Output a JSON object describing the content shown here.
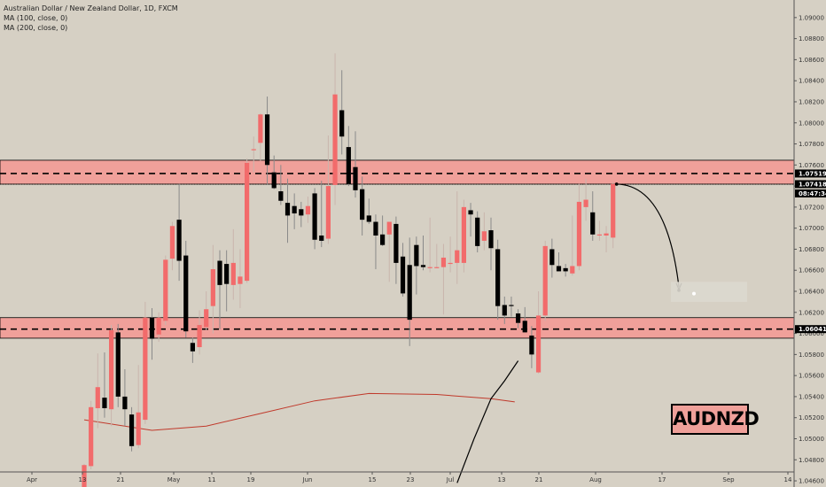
{
  "legend": {
    "title": "Australian Dollar / New Zealand Dollar, 1D, FXCM",
    "ma100": "MA (100, close, 0)",
    "ma200": "MA (200, close, 0)"
  },
  "symbol_label": "AUDNZD",
  "price_labels": {
    "upper_level": "1.07519",
    "last_price": "1.07418",
    "countdown": "08:47:34",
    "lower_level": "1.06041"
  },
  "colors": {
    "background": "#d6d0c4",
    "up": "#f26b6b",
    "down": "#000000",
    "zone_fill": "#f0a09a",
    "ma100": "#000000",
    "ma200": "#c0392b"
  },
  "chart_data": {
    "type": "candlestick",
    "y_axis_ticks": [
      "1.09000",
      "1.08800",
      "1.08600",
      "1.08400",
      "1.08200",
      "1.08000",
      "1.07800",
      "1.07600",
      "1.07400",
      "1.07200",
      "1.07000",
      "1.06800",
      "1.06600",
      "1.06400",
      "1.06200",
      "1.06000",
      "1.05800",
      "1.05600",
      "1.05400",
      "1.05200",
      "1.05000",
      "1.04800",
      "1.04600"
    ],
    "x_axis_ticks": [
      "Apr",
      "13",
      "21",
      "May",
      "11",
      "19",
      "Jun",
      "15",
      "23",
      "Jul",
      "13",
      "21",
      "Aug",
      "17",
      "Sep",
      "14"
    ],
    "ylim": [
      1.0455,
      1.0915
    ],
    "resistance_zone": [
      1.07418,
      1.07645
    ],
    "resistance_line": 1.07519,
    "support_zone": [
      1.05955,
      1.0615
    ],
    "support_line": 1.06041,
    "last_price": 1.07418,
    "projection": {
      "from": 1.07418,
      "to": 1.0641,
      "target_box": [
        1.063,
        1.0649
      ]
    },
    "candles": [
      {
        "o": 1.044,
        "h": 1.0476,
        "l": 1.044,
        "c": 1.0475
      },
      {
        "o": 1.0474,
        "h": 1.0536,
        "l": 1.0471,
        "c": 1.053
      },
      {
        "o": 1.0529,
        "h": 1.0581,
        "l": 1.051,
        "c": 1.0549
      },
      {
        "o": 1.0539,
        "h": 1.0582,
        "l": 1.052,
        "c": 1.0529
      },
      {
        "o": 1.0528,
        "h": 1.0608,
        "l": 1.0512,
        "c": 1.0603
      },
      {
        "o": 1.0601,
        "h": 1.0609,
        "l": 1.053,
        "c": 1.054
      },
      {
        "o": 1.054,
        "h": 1.0566,
        "l": 1.0512,
        "c": 1.0528
      },
      {
        "o": 1.0523,
        "h": 1.053,
        "l": 1.0488,
        "c": 1.0493
      },
      {
        "o": 1.0494,
        "h": 1.057,
        "l": 1.0491,
        "c": 1.0525
      },
      {
        "o": 1.0518,
        "h": 1.063,
        "l": 1.0514,
        "c": 1.0615
      },
      {
        "o": 1.0615,
        "h": 1.0624,
        "l": 1.0575,
        "c": 1.0595
      },
      {
        "o": 1.0599,
        "h": 1.062,
        "l": 1.0592,
        "c": 1.0615
      },
      {
        "o": 1.0612,
        "h": 1.0674,
        "l": 1.0608,
        "c": 1.067
      },
      {
        "o": 1.0671,
        "h": 1.0706,
        "l": 1.066,
        "c": 1.0702
      },
      {
        "o": 1.0708,
        "h": 1.0742,
        "l": 1.065,
        "c": 1.0669
      },
      {
        "o": 1.0674,
        "h": 1.0688,
        "l": 1.0596,
        "c": 1.0602
      },
      {
        "o": 1.0591,
        "h": 1.0596,
        "l": 1.0572,
        "c": 1.0583
      },
      {
        "o": 1.0587,
        "h": 1.0622,
        "l": 1.058,
        "c": 1.0608
      },
      {
        "o": 1.0606,
        "h": 1.064,
        "l": 1.0603,
        "c": 1.0623
      },
      {
        "o": 1.0626,
        "h": 1.0684,
        "l": 1.06,
        "c": 1.0661
      },
      {
        "o": 1.0669,
        "h": 1.0679,
        "l": 1.0604,
        "c": 1.0646
      },
      {
        "o": 1.0666,
        "h": 1.0679,
        "l": 1.0621,
        "c": 1.0647
      },
      {
        "o": 1.0646,
        "h": 1.0699,
        "l": 1.0632,
        "c": 1.0667
      },
      {
        "o": 1.0647,
        "h": 1.068,
        "l": 1.0624,
        "c": 1.0654
      },
      {
        "o": 1.065,
        "h": 1.0766,
        "l": 1.0648,
        "c": 1.0762
      },
      {
        "o": 1.0774,
        "h": 1.0787,
        "l": 1.0753,
        "c": 1.0775
      },
      {
        "o": 1.0781,
        "h": 1.0809,
        "l": 1.0764,
        "c": 1.0808
      },
      {
        "o": 1.0808,
        "h": 1.0825,
        "l": 1.0741,
        "c": 1.076
      },
      {
        "o": 1.0753,
        "h": 1.0769,
        "l": 1.0737,
        "c": 1.0738
      },
      {
        "o": 1.0735,
        "h": 1.076,
        "l": 1.0722,
        "c": 1.0726
      },
      {
        "o": 1.0724,
        "h": 1.0747,
        "l": 1.0686,
        "c": 1.0712
      },
      {
        "o": 1.0721,
        "h": 1.0733,
        "l": 1.0699,
        "c": 1.0714
      },
      {
        "o": 1.0718,
        "h": 1.0725,
        "l": 1.0701,
        "c": 1.0712
      },
      {
        "o": 1.0713,
        "h": 1.073,
        "l": 1.0705,
        "c": 1.0721
      },
      {
        "o": 1.0733,
        "h": 1.0738,
        "l": 1.068,
        "c": 1.0689
      },
      {
        "o": 1.0693,
        "h": 1.0745,
        "l": 1.0682,
        "c": 1.0688
      },
      {
        "o": 1.069,
        "h": 1.0788,
        "l": 1.0685,
        "c": 1.074
      },
      {
        "o": 1.0741,
        "h": 1.0866,
        "l": 1.0722,
        "c": 1.0827
      },
      {
        "o": 1.0812,
        "h": 1.085,
        "l": 1.077,
        "c": 1.0787
      },
      {
        "o": 1.0777,
        "h": 1.0797,
        "l": 1.074,
        "c": 1.0742
      },
      {
        "o": 1.0758,
        "h": 1.0792,
        "l": 1.0729,
        "c": 1.0736
      },
      {
        "o": 1.0737,
        "h": 1.0749,
        "l": 1.0693,
        "c": 1.0708
      },
      {
        "o": 1.0712,
        "h": 1.0728,
        "l": 1.0704,
        "c": 1.0706
      },
      {
        "o": 1.0706,
        "h": 1.0713,
        "l": 1.0661,
        "c": 1.0693
      },
      {
        "o": 1.0694,
        "h": 1.0712,
        "l": 1.0683,
        "c": 1.0684
      },
      {
        "o": 1.0694,
        "h": 1.0706,
        "l": 1.0649,
        "c": 1.0706
      },
      {
        "o": 1.0704,
        "h": 1.0711,
        "l": 1.0647,
        "c": 1.0667
      },
      {
        "o": 1.0673,
        "h": 1.0686,
        "l": 1.0635,
        "c": 1.0638
      },
      {
        "o": 1.0665,
        "h": 1.0691,
        "l": 1.0588,
        "c": 1.0613
      },
      {
        "o": 1.0684,
        "h": 1.0692,
        "l": 1.0637,
        "c": 1.0664
      },
      {
        "o": 1.0665,
        "h": 1.0693,
        "l": 1.066,
        "c": 1.0663
      },
      {
        "o": 1.0663,
        "h": 1.071,
        "l": 1.0658,
        "c": 1.0663
      },
      {
        "o": 1.0663,
        "h": 1.0685,
        "l": 1.0662,
        "c": 1.0663
      },
      {
        "o": 1.0663,
        "h": 1.0685,
        "l": 1.0618,
        "c": 1.0672
      },
      {
        "o": 1.0666,
        "h": 1.0692,
        "l": 1.0658,
        "c": 1.0667
      },
      {
        "o": 1.0667,
        "h": 1.0735,
        "l": 1.0647,
        "c": 1.0679
      },
      {
        "o": 1.0667,
        "h": 1.0727,
        "l": 1.0658,
        "c": 1.072
      },
      {
        "o": 1.0717,
        "h": 1.0724,
        "l": 1.0692,
        "c": 1.0713
      },
      {
        "o": 1.071,
        "h": 1.0716,
        "l": 1.0677,
        "c": 1.0683
      },
      {
        "o": 1.0688,
        "h": 1.0715,
        "l": 1.0679,
        "c": 1.0697
      },
      {
        "o": 1.0698,
        "h": 1.071,
        "l": 1.066,
        "c": 1.0681
      },
      {
        "o": 1.068,
        "h": 1.0689,
        "l": 1.0613,
        "c": 1.0626
      },
      {
        "o": 1.0627,
        "h": 1.0635,
        "l": 1.0609,
        "c": 1.0617
      },
      {
        "o": 1.0627,
        "h": 1.0635,
        "l": 1.0616,
        "c": 1.0626
      },
      {
        "o": 1.0619,
        "h": 1.0623,
        "l": 1.0605,
        "c": 1.061
      },
      {
        "o": 1.0612,
        "h": 1.0625,
        "l": 1.0601,
        "c": 1.0601
      },
      {
        "o": 1.0598,
        "h": 1.0607,
        "l": 1.0567,
        "c": 1.058
      },
      {
        "o": 1.0563,
        "h": 1.064,
        "l": 1.0562,
        "c": 1.0617
      },
      {
        "o": 1.0617,
        "h": 1.0688,
        "l": 1.0612,
        "c": 1.0683
      },
      {
        "o": 1.068,
        "h": 1.069,
        "l": 1.0653,
        "c": 1.0665
      },
      {
        "o": 1.0664,
        "h": 1.0677,
        "l": 1.0659,
        "c": 1.0659
      },
      {
        "o": 1.0662,
        "h": 1.0666,
        "l": 1.0654,
        "c": 1.0659
      },
      {
        "o": 1.0657,
        "h": 1.0712,
        "l": 1.0655,
        "c": 1.0664
      },
      {
        "o": 1.0664,
        "h": 1.0742,
        "l": 1.066,
        "c": 1.0725
      },
      {
        "o": 1.072,
        "h": 1.0747,
        "l": 1.0707,
        "c": 1.0727
      },
      {
        "o": 1.0715,
        "h": 1.0735,
        "l": 1.0688,
        "c": 1.0694
      },
      {
        "o": 1.0693,
        "h": 1.0707,
        "l": 1.0688,
        "c": 1.0694
      },
      {
        "o": 1.0693,
        "h": 1.0702,
        "l": 1.0677,
        "c": 1.0695
      },
      {
        "o": 1.0691,
        "h": 1.0743,
        "l": 1.0681,
        "c": 1.0742
      }
    ],
    "ma100": [
      [
        1.0458,
        55
      ],
      [
        1.05,
        57.5
      ],
      [
        1.0538,
        60
      ],
      [
        1.0555,
        62
      ],
      [
        1.0574,
        64
      ]
    ],
    "ma200": [
      [
        1.0518,
        0
      ],
      [
        1.0508,
        10
      ],
      [
        1.0512,
        18
      ],
      [
        1.0524,
        26
      ],
      [
        1.0536,
        34
      ],
      [
        1.0543,
        42
      ],
      [
        1.0542,
        52
      ],
      [
        1.0538,
        60
      ],
      [
        1.0535,
        63.5
      ]
    ]
  }
}
